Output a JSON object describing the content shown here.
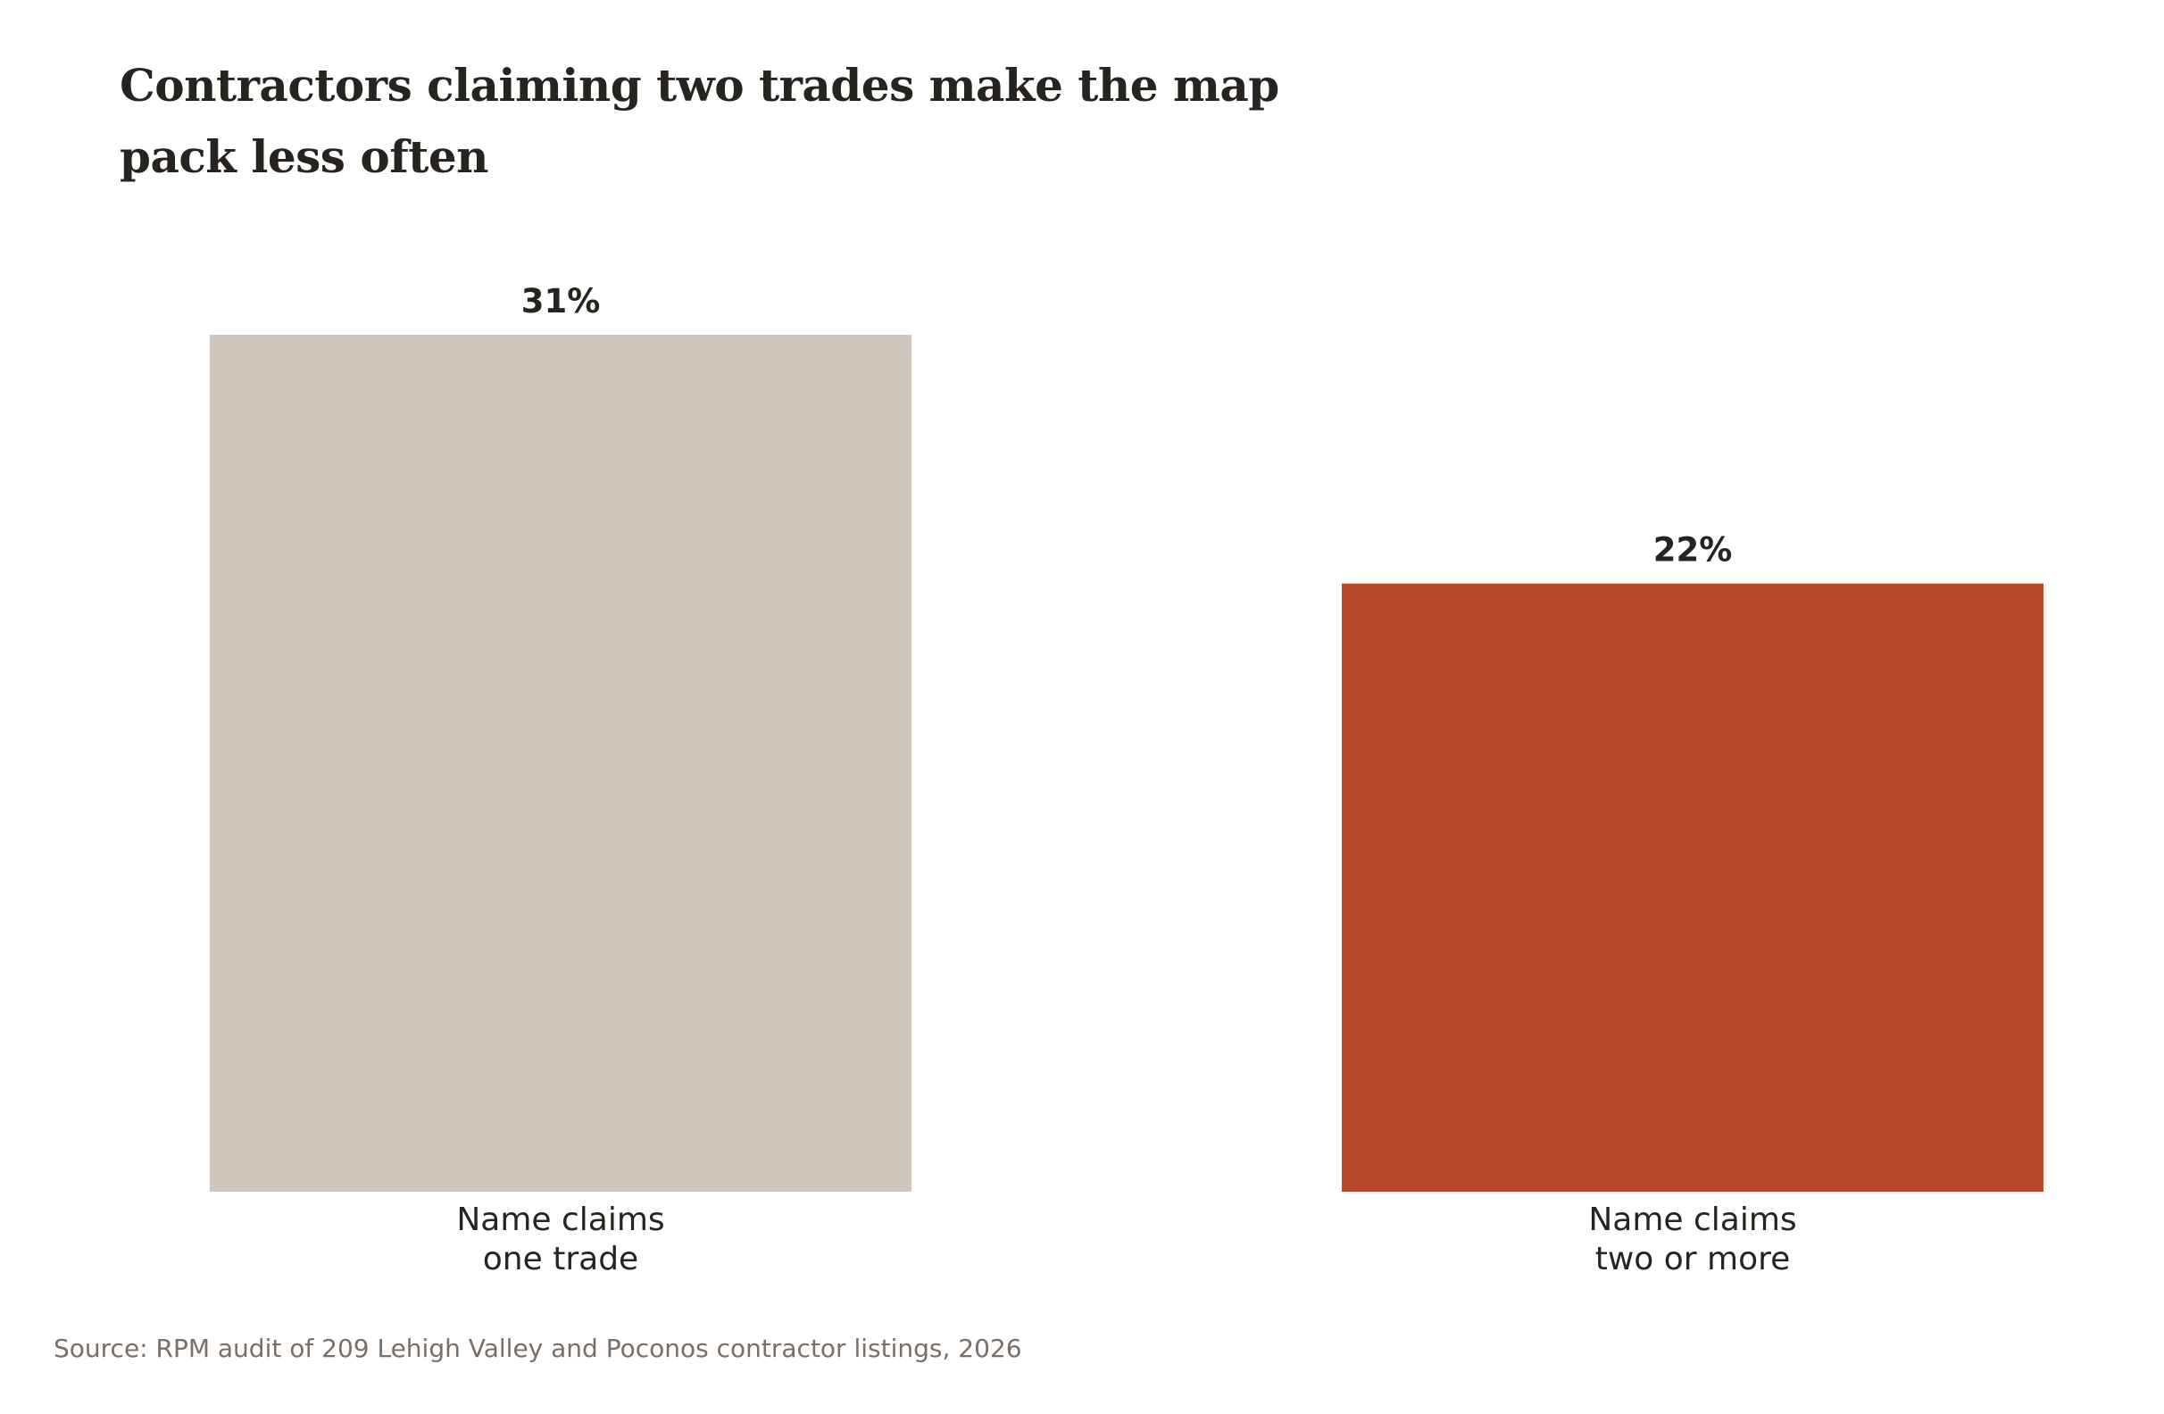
{
  "chart_data": {
    "type": "bar",
    "title": "Contractors claiming two trades make the map pack less often",
    "categories": [
      [
        "Name claims",
        "one trade"
      ],
      [
        "Name claims",
        "two or more"
      ]
    ],
    "values": [
      31,
      22
    ],
    "value_labels": [
      "31%",
      "22%"
    ],
    "bar_colors": [
      "#d0c6bb",
      "#b8482a"
    ],
    "text_color": "#27231f",
    "source_color": "#7a6e66",
    "ylim": [
      0,
      31
    ],
    "grid": false,
    "legend": "none"
  },
  "source": "Source: RPM audit of 209 Lehigh Valley and Poconos contractor listings, 2026"
}
